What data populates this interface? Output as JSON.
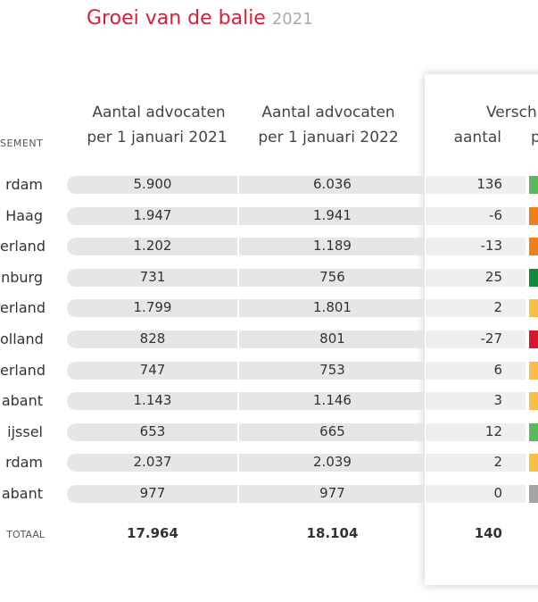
{
  "header": {
    "title": "Groei van de balie",
    "year": "2021"
  },
  "table": {
    "columns": {
      "name": "SEMENT",
      "col1": [
        "Aantal advocaten",
        "per 1 januari 2021"
      ],
      "col2": [
        "Aantal advocaten",
        "per 1 januari 2022"
      ],
      "diff": "Versch",
      "diff_count": "aantal",
      "diff_pct": "p"
    },
    "rows": [
      {
        "name": "rdam",
        "v2021": "5.900",
        "v2022": "6.036",
        "diff": "136",
        "color": "#5cb85c"
      },
      {
        "name": "Haag",
        "v2021": "1.947",
        "v2022": "1.941",
        "diff": "-6",
        "color": "#f07f14"
      },
      {
        "name": "erland",
        "v2021": "1.202",
        "v2022": "1.189",
        "diff": "-13",
        "color": "#f07f14"
      },
      {
        "name": "nburg",
        "v2021": "731",
        "v2022": "756",
        "diff": "25",
        "color": "#0e8a3c"
      },
      {
        "name": "erland",
        "v2021": "1.799",
        "v2022": "1.801",
        "diff": "2",
        "color": "#f9bf45"
      },
      {
        "name": "olland",
        "v2021": "828",
        "v2022": "801",
        "diff": "-27",
        "color": "#d7152b"
      },
      {
        "name": "erland",
        "v2021": "747",
        "v2022": "753",
        "diff": "6",
        "color": "#f9bf45"
      },
      {
        "name": "abant",
        "v2021": "1.143",
        "v2022": "1.146",
        "diff": "3",
        "color": "#f9bf45"
      },
      {
        "name": "ijssel",
        "v2021": "653",
        "v2022": "665",
        "diff": "12",
        "color": "#5cb85c"
      },
      {
        "name": "rdam",
        "v2021": "2.037",
        "v2022": "2.039",
        "diff": "2",
        "color": "#f9bf45"
      },
      {
        "name": "abant",
        "v2021": "977",
        "v2022": "977",
        "diff": "0",
        "color": "#a5a5a5"
      }
    ],
    "total": {
      "name": "TOTAAL",
      "v2021": "17.964",
      "v2022": "18.104",
      "diff": "140"
    }
  }
}
